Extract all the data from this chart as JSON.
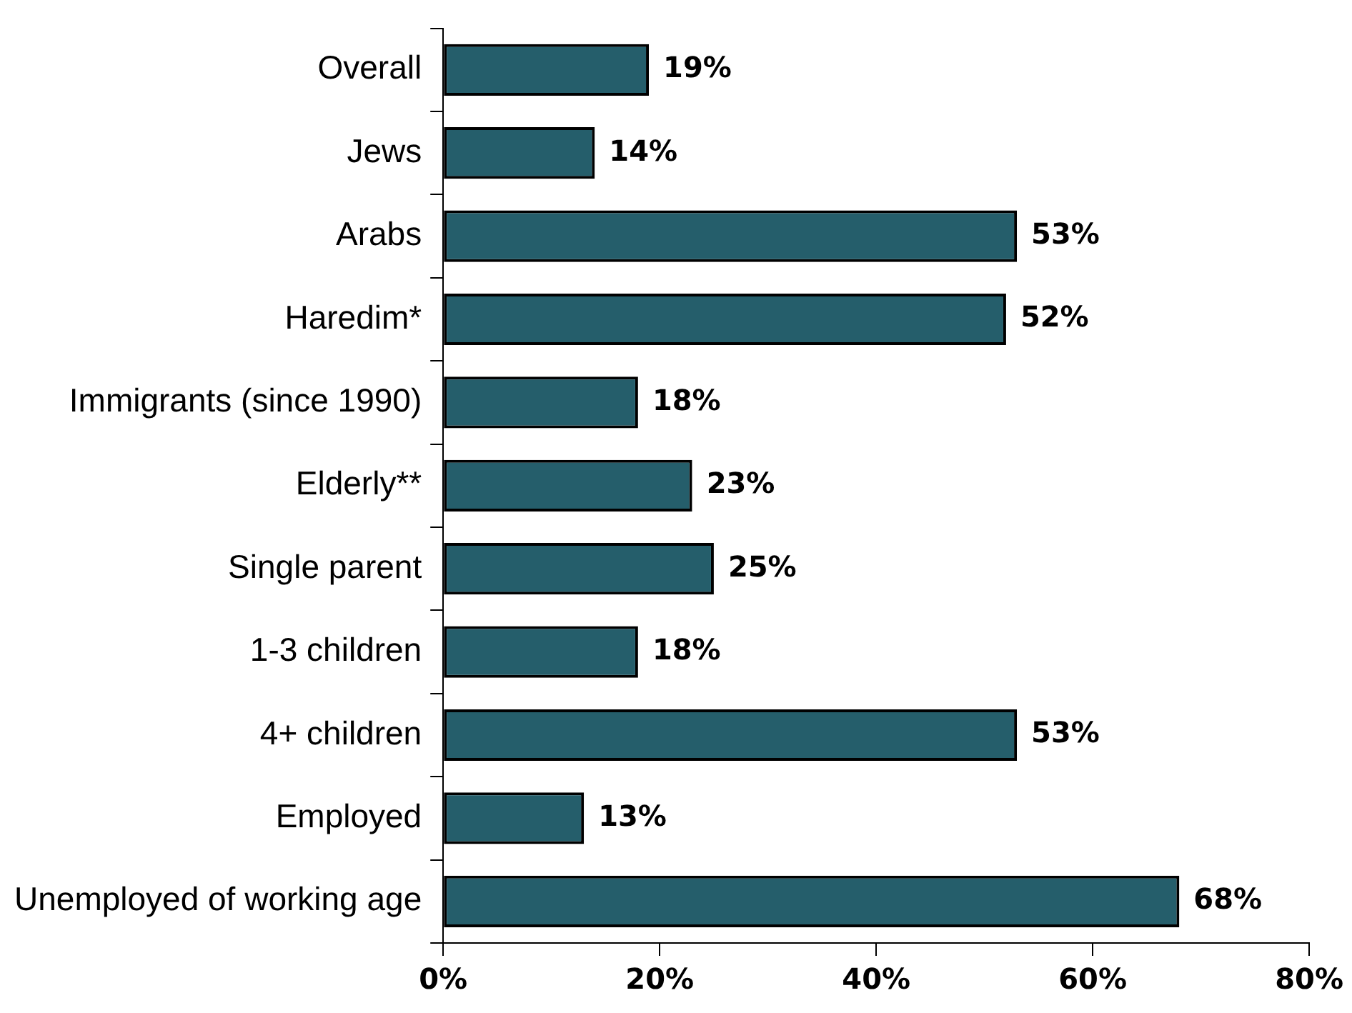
{
  "chart_data": {
    "type": "bar",
    "orientation": "horizontal",
    "categories": [
      "Overall",
      "Jews",
      "Arabs",
      "Haredim*",
      "Immigrants (since 1990)",
      "Elderly**",
      "Single parent",
      "1-3 children",
      "4+ children",
      "Employed",
      "Unemployed of working age"
    ],
    "values": [
      19,
      14,
      53,
      52,
      18,
      23,
      25,
      18,
      53,
      13,
      68
    ],
    "value_labels": [
      "19%",
      "14%",
      "53%",
      "52%",
      "18%",
      "23%",
      "25%",
      "18%",
      "53%",
      "13%",
      "68%"
    ],
    "color": "#255e6b",
    "xlim": [
      0,
      80
    ],
    "xticks": [
      {
        "value": 0,
        "label": "0%"
      },
      {
        "value": 20,
        "label": "20%"
      },
      {
        "value": 40,
        "label": "40%"
      },
      {
        "value": 60,
        "label": "60%"
      },
      {
        "value": 80,
        "label": "80%"
      }
    ],
    "grid": false,
    "legend": false
  }
}
